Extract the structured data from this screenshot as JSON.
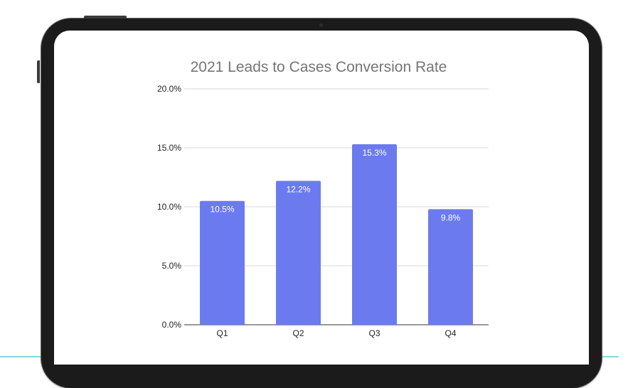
{
  "chart_data": {
    "type": "bar",
    "title": "2021 Leads to Cases Conversion Rate",
    "categories": [
      "Q1",
      "Q2",
      "Q3",
      "Q4"
    ],
    "values": [
      10.5,
      12.2,
      15.3,
      9.8
    ],
    "value_labels": [
      "10.5%",
      "12.2%",
      "15.3%",
      "9.8%"
    ],
    "ylim": [
      0,
      20
    ],
    "yticks": [
      0,
      5,
      10,
      15,
      20
    ],
    "ytick_labels": [
      "0.0%",
      "5.0%",
      "10.0%",
      "15.0%",
      "20.0%"
    ],
    "xlabel": "",
    "ylabel": "",
    "grid": true,
    "legend": "none",
    "bar_color": "#6b7bef"
  }
}
